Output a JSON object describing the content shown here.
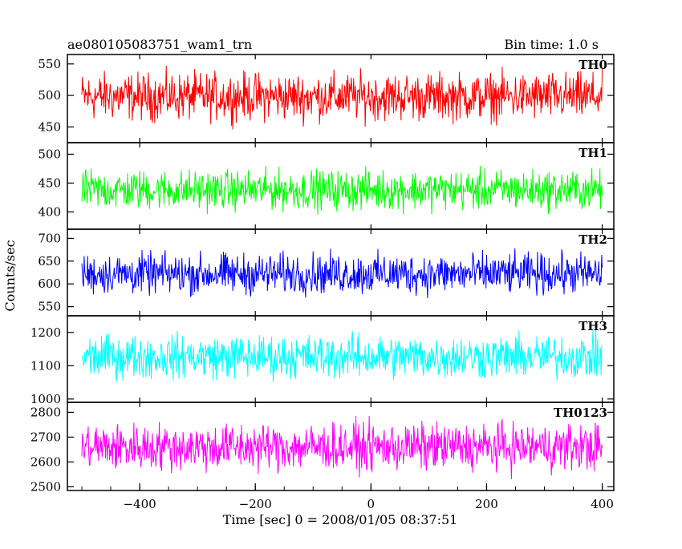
{
  "header": {
    "title": "ae080105083751_wam1_trn",
    "bin_time": "Bin time: 1.0 s"
  },
  "chart_data": {
    "type": "line",
    "xlabel": "Time [sec] 0 = 2008/01/05 08:37:51",
    "ylabel": "Counts/sec",
    "xlim": [
      -525,
      420
    ],
    "x_range_data": [
      -500,
      400
    ],
    "x_ticks": [
      -400,
      -200,
      0,
      200,
      400
    ],
    "x_tick_labels": [
      "−400",
      "−200",
      "0",
      "200",
      "400"
    ],
    "panels": [
      {
        "name": "TH0",
        "color": "#ff0000",
        "ylim": [
          425,
          565
        ],
        "yticks": [
          450,
          500,
          550
        ],
        "mean": 498,
        "spread": 55,
        "sample_values": [
          505,
          470,
          530,
          488,
          512,
          460,
          545,
          495,
          478,
          520,
          500,
          455
        ]
      },
      {
        "name": "TH1",
        "color": "#00ff00",
        "ylim": [
          370,
          520
        ],
        "yticks": [
          400,
          450,
          500
        ],
        "mean": 438,
        "spread": 50,
        "sample_values": [
          440,
          410,
          470,
          425,
          455,
          395,
          490,
          438,
          420,
          462,
          445,
          405
        ]
      },
      {
        "name": "TH2",
        "color": "#0000ff",
        "ylim": [
          530,
          720
        ],
        "yticks": [
          550,
          600,
          650,
          700
        ],
        "mean": 622,
        "spread": 65,
        "sample_values": [
          625,
          590,
          665,
          605,
          640,
          570,
          700,
          620,
          598,
          655,
          630,
          580
        ]
      },
      {
        "name": "TH3",
        "color": "#00ffff",
        "ylim": [
          990,
          1250
        ],
        "yticks": [
          1000,
          1100,
          1200
        ],
        "mean": 1127,
        "spread": 95,
        "sample_values": [
          1130,
          1075,
          1190,
          1105,
          1160,
          1040,
          1225,
          1125,
          1090,
          1180,
          1140,
          1060
        ]
      },
      {
        "name": "TH0123",
        "color": "#ff00ff",
        "ylim": [
          2485,
          2840
        ],
        "yticks": [
          2500,
          2600,
          2700,
          2800
        ],
        "mean": 2660,
        "spread": 140,
        "sample_values": [
          2665,
          2590,
          2750,
          2620,
          2700,
          2540,
          2800,
          2655,
          2605,
          2735,
          2680,
          2560
        ]
      }
    ]
  }
}
